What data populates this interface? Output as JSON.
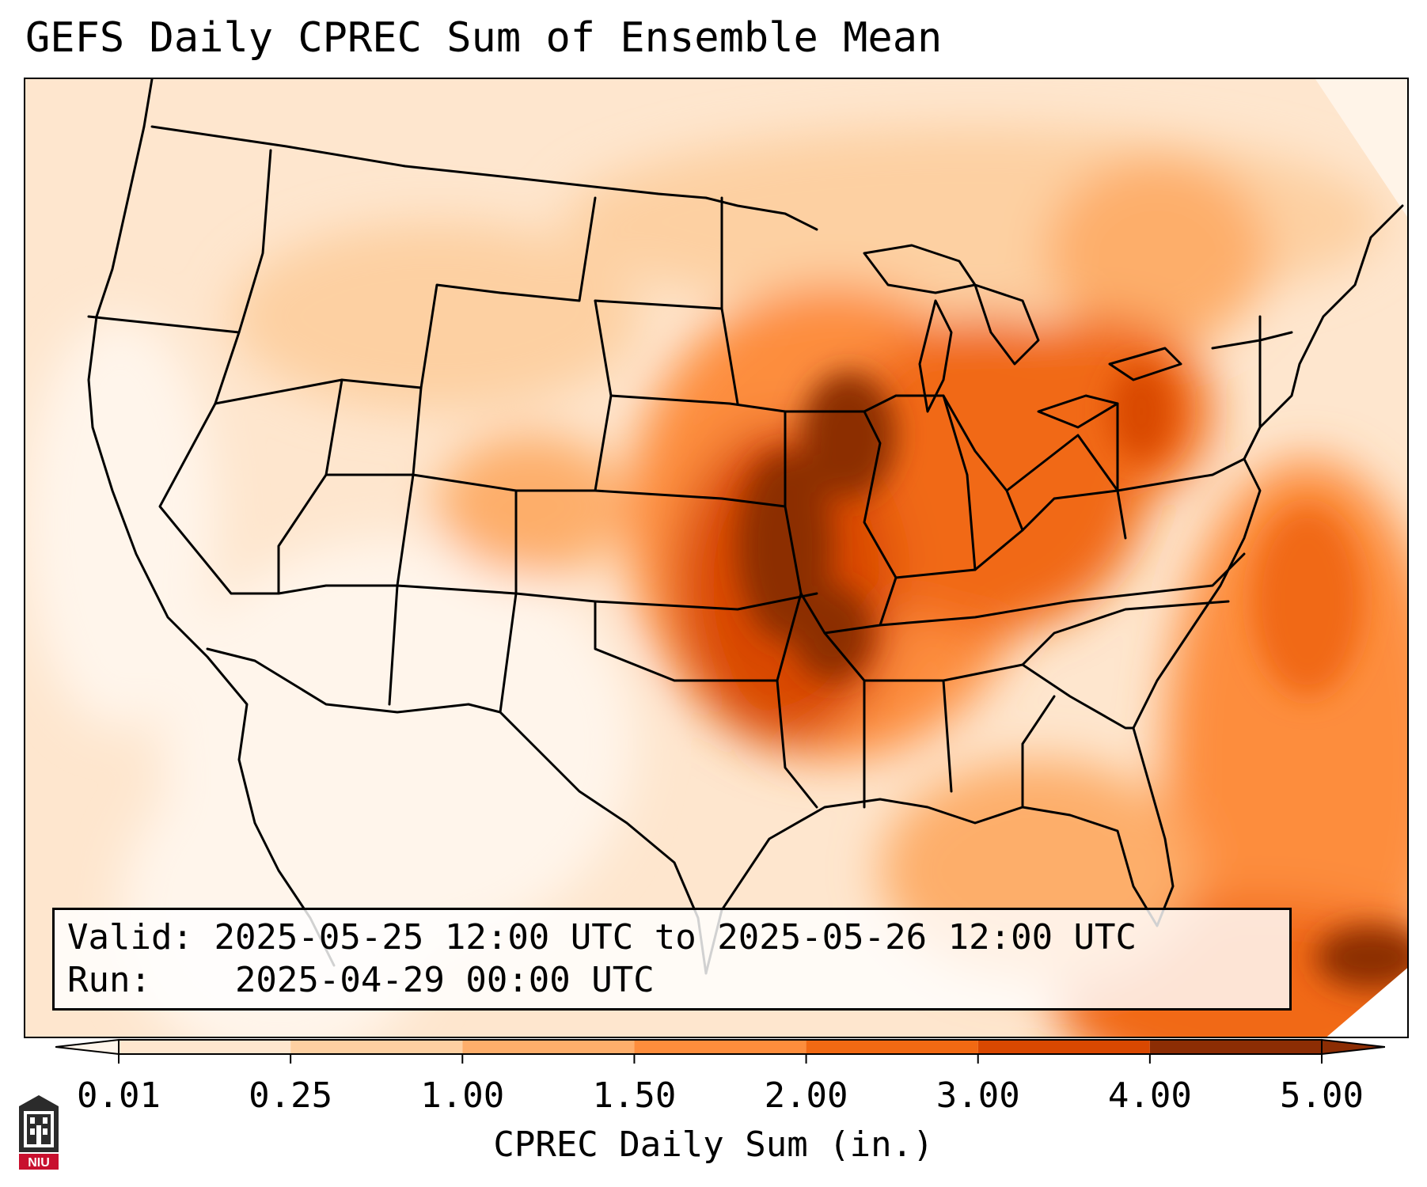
{
  "title": "GEFS Daily CPREC Sum of Ensemble Mean",
  "info": {
    "valid_label": "Valid:",
    "valid_value": "2025-05-25 12:00 UTC to 2025-05-26 12:00 UTC",
    "run_label": "Run:",
    "run_value": "2025-04-29 00:00 UTC"
  },
  "colorbar": {
    "label": "CPREC Daily Sum (in.)",
    "ticks": [
      "0.01",
      "0.25",
      "1.00",
      "1.50",
      "2.00",
      "3.00",
      "4.00",
      "5.00"
    ],
    "colors": [
      "#fff5eb",
      "#fee6ce",
      "#fdd0a2",
      "#fdae6b",
      "#fd8d3c",
      "#f16913",
      "#d94801",
      "#8c2d04"
    ],
    "extend": "both"
  },
  "logo": {
    "text": "NIU",
    "color": "#c8102e",
    "icon": "niu-tower-icon"
  },
  "map": {
    "projection": "lambert-conformal",
    "region": "CONUS"
  }
}
